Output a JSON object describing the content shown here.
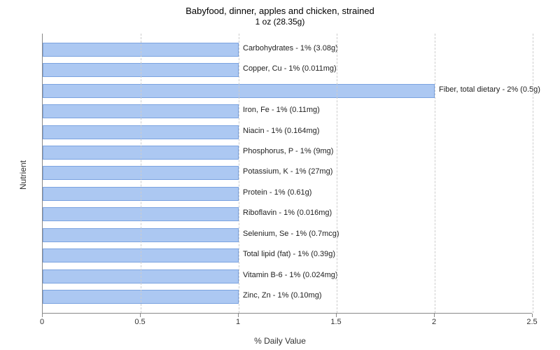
{
  "chart": {
    "type": "bar-horizontal",
    "title": "Babyfood, dinner, apples and chicken, strained",
    "subtitle": "1 oz (28.35g)",
    "ylabel": "Nutrient",
    "xlabel": "% Daily Value",
    "xlim_min": 0,
    "xlim_max": 2.5,
    "xtick_step": 0.5,
    "xticks": [
      "0",
      "0.5",
      "1",
      "1.5",
      "2",
      "2.5"
    ],
    "background_color": "#ffffff",
    "grid_color": "#cccccc",
    "bar_fill": "#acc8f2",
    "bar_stroke": "#7ba3e0",
    "title_fontsize": 13,
    "label_fontsize": 12,
    "tick_fontsize": 11,
    "bars": [
      {
        "label": "Carbohydrates - 1% (3.08g)",
        "value": 1
      },
      {
        "label": "Copper, Cu - 1% (0.011mg)",
        "value": 1
      },
      {
        "label": "Fiber, total dietary - 2% (0.5g)",
        "value": 2
      },
      {
        "label": "Iron, Fe - 1% (0.11mg)",
        "value": 1
      },
      {
        "label": "Niacin - 1% (0.164mg)",
        "value": 1
      },
      {
        "label": "Phosphorus, P - 1% (9mg)",
        "value": 1
      },
      {
        "label": "Potassium, K - 1% (27mg)",
        "value": 1
      },
      {
        "label": "Protein - 1% (0.61g)",
        "value": 1
      },
      {
        "label": "Riboflavin - 1% (0.016mg)",
        "value": 1
      },
      {
        "label": "Selenium, Se - 1% (0.7mcg)",
        "value": 1
      },
      {
        "label": "Total lipid (fat) - 1% (0.39g)",
        "value": 1
      },
      {
        "label": "Vitamin B-6 - 1% (0.024mg)",
        "value": 1
      },
      {
        "label": "Zinc, Zn - 1% (0.10mg)",
        "value": 1
      }
    ]
  }
}
